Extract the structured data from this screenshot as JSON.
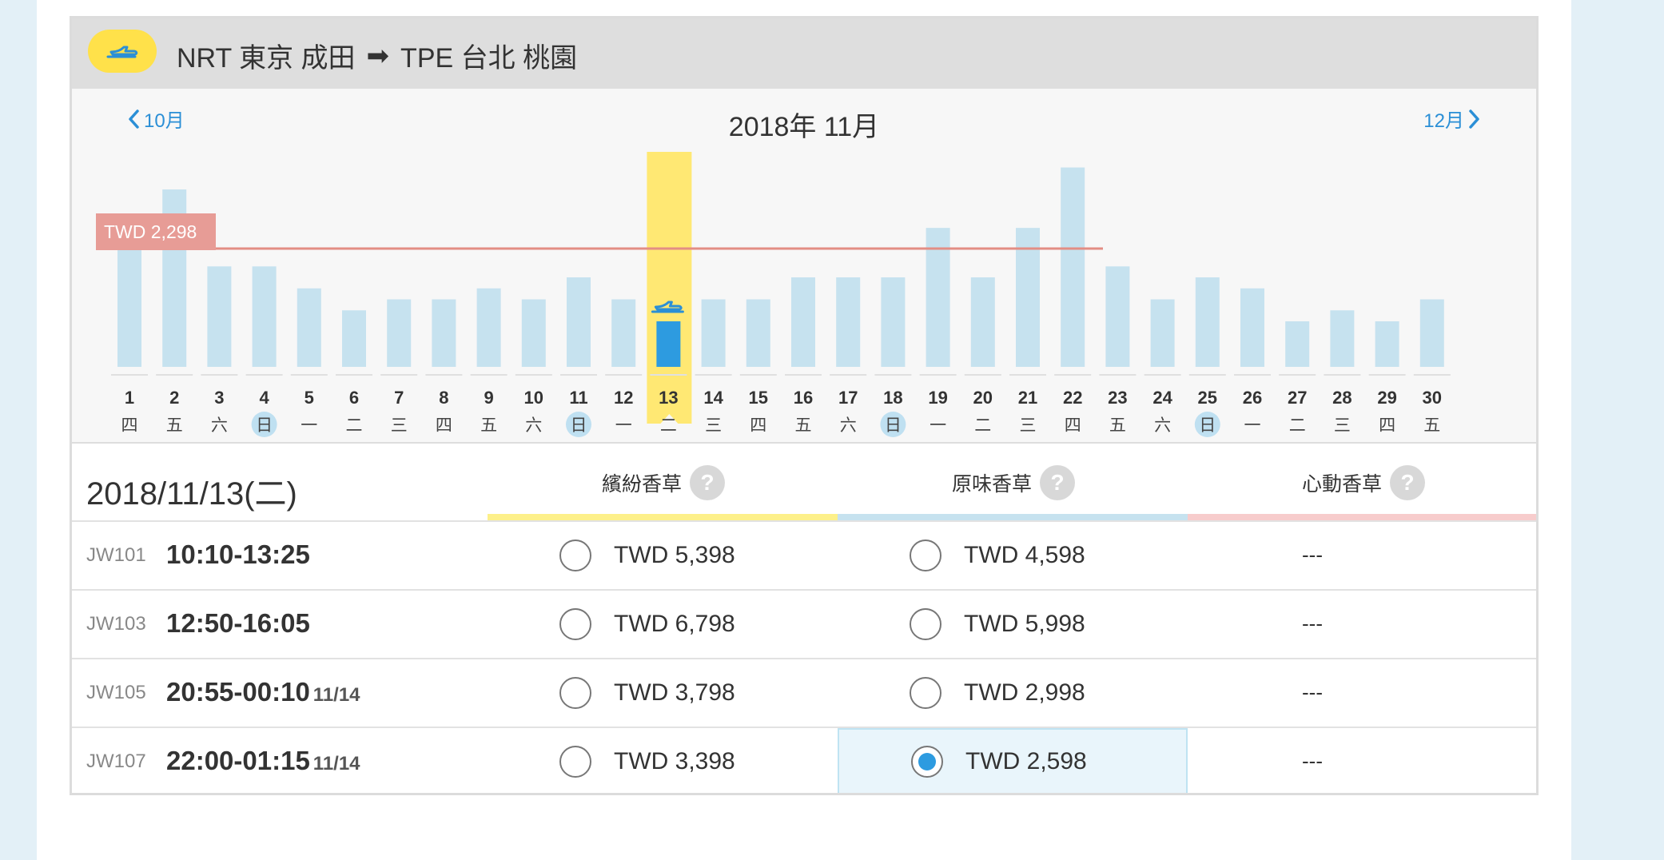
{
  "route": {
    "icon": "plane-icon",
    "origin": "NRT 東京 成田",
    "arrow": "➡",
    "destination": "TPE 台北 桃園"
  },
  "calendar": {
    "prev_label": "10月",
    "next_label": "12月",
    "month_title": "2018年 11月"
  },
  "chart_data": {
    "type": "bar",
    "categories": [
      "1",
      "2",
      "3",
      "4",
      "5",
      "6",
      "7",
      "8",
      "9",
      "10",
      "11",
      "12",
      "13",
      "14",
      "15",
      "16",
      "17",
      "18",
      "19",
      "20",
      "21",
      "22",
      "23",
      "24",
      "25",
      "26",
      "27",
      "28",
      "29",
      "30"
    ],
    "weekdays": [
      "四",
      "五",
      "六",
      "日",
      "一",
      "二",
      "三",
      "四",
      "五",
      "六",
      "日",
      "一",
      "二",
      "三",
      "四",
      "五",
      "六",
      "日",
      "一",
      "二",
      "三",
      "四",
      "五",
      "六",
      "日",
      "一",
      "二",
      "三",
      "四",
      "五"
    ],
    "values": [
      2998,
      3498,
      2798,
      2798,
      2598,
      2398,
      2498,
      2498,
      2598,
      2498,
      2698,
      2498,
      2298,
      2498,
      2498,
      2698,
      2698,
      2698,
      3148,
      2698,
      3148,
      3698,
      2798,
      2498,
      2698,
      2598,
      2298,
      2398,
      2298,
      2498
    ],
    "highlight_day": "13",
    "holiday_days": [
      "4",
      "11",
      "18",
      "25"
    ],
    "reference_line": {
      "label": "TWD 2,298",
      "value": 2298
    },
    "colors": {
      "bar": "#c6e2ef",
      "selected_bar": "#2d9be0",
      "highlight": "#ffe873",
      "line": "#e38d84",
      "label_bg": "#e79c96"
    }
  },
  "detail": {
    "date": "2018/11/13(二)",
    "columns": [
      {
        "label": "繽紛香草",
        "help": "?",
        "color": "#fdf08a"
      },
      {
        "label": "原味香草",
        "help": "?",
        "color": "#c6e2ef"
      },
      {
        "label": "心動香草",
        "help": "?",
        "color": "#f7cccc"
      }
    ],
    "flights": [
      {
        "no": "JW101",
        "time": "10:10-13:25",
        "next_day": "",
        "fare1": "TWD 5,398",
        "fare2": "TWD 4,598",
        "fare3": "---",
        "selected": false
      },
      {
        "no": "JW103",
        "time": "12:50-16:05",
        "next_day": "",
        "fare1": "TWD 6,798",
        "fare2": "TWD 5,998",
        "fare3": "---",
        "selected": false
      },
      {
        "no": "JW105",
        "time": "20:55-00:10",
        "next_day": "11/14",
        "fare1": "TWD 3,798",
        "fare2": "TWD 2,998",
        "fare3": "---",
        "selected": false
      },
      {
        "no": "JW107",
        "time": "22:00-01:15",
        "next_day": "11/14",
        "fare1": "TWD 3,398",
        "fare2": "TWD 2,598",
        "fare3": "---",
        "selected": true
      }
    ]
  }
}
